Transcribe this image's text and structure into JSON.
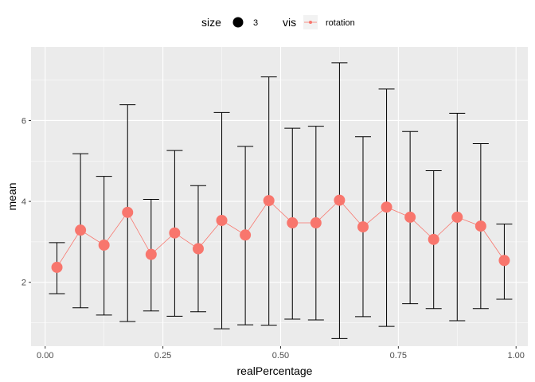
{
  "chart_data": {
    "type": "line",
    "xlabel": "realPercentage",
    "ylabel": "mean",
    "xlim": [
      -0.03,
      1.025
    ],
    "ylim": [
      0.42,
      7.82
    ],
    "x_ticks": [
      0.0,
      0.25,
      0.5,
      0.75,
      1.0
    ],
    "x_tick_labels": [
      "0.00",
      "0.25",
      "0.50",
      "0.75",
      "1.00"
    ],
    "y_ticks": [
      2,
      4,
      6
    ],
    "y_tick_labels": [
      "2",
      "4",
      "6"
    ],
    "grid": true,
    "legend": {
      "placement": "top",
      "size_title": "size",
      "size_label": "3",
      "vis_title": "vis",
      "vis_label": "rotation"
    },
    "colors": {
      "series": "#f8766d",
      "errorbar": "#000000",
      "panel": "#ebebeb",
      "grid": "#ffffff"
    },
    "series": [
      {
        "name": "rotation",
        "x": [
          0.025,
          0.075,
          0.125,
          0.175,
          0.225,
          0.275,
          0.325,
          0.375,
          0.425,
          0.475,
          0.525,
          0.575,
          0.625,
          0.675,
          0.725,
          0.775,
          0.825,
          0.875,
          0.925,
          0.975
        ],
        "y": [
          2.37,
          3.29,
          2.92,
          3.73,
          2.69,
          3.22,
          2.83,
          3.53,
          3.17,
          4.02,
          3.47,
          3.47,
          4.03,
          3.37,
          3.86,
          3.61,
          3.06,
          3.61,
          3.39,
          2.54
        ],
        "ymin": [
          1.72,
          1.37,
          1.19,
          1.03,
          1.29,
          1.16,
          1.27,
          0.85,
          0.95,
          0.94,
          1.09,
          1.07,
          0.61,
          1.15,
          0.91,
          1.47,
          1.35,
          1.05,
          1.35,
          1.58
        ],
        "ymax": [
          2.98,
          5.18,
          4.62,
          6.39,
          4.05,
          5.26,
          4.39,
          6.2,
          5.36,
          7.08,
          5.81,
          5.86,
          7.43,
          5.6,
          6.78,
          5.73,
          4.76,
          6.18,
          5.43,
          3.44
        ]
      }
    ]
  }
}
